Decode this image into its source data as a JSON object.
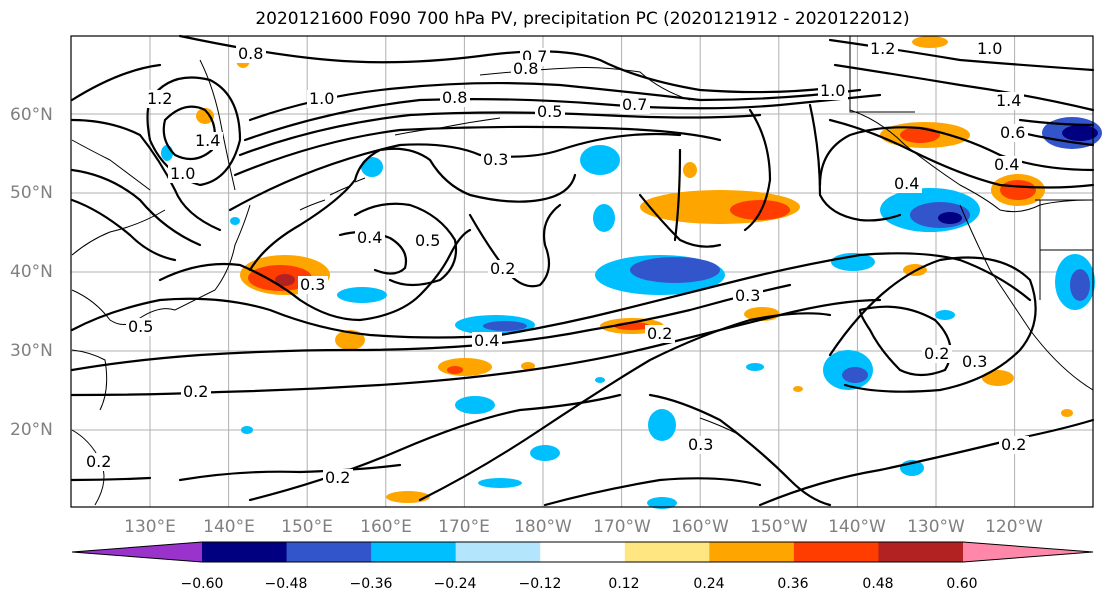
{
  "title": "2020121600 F090 700 hPa PV, precipitation PC (2020121912 - 2020122012)",
  "map": {
    "lat_labels": [
      "60°N",
      "50°N",
      "40°N",
      "30°N",
      "20°N"
    ],
    "lon_labels": [
      "130°E",
      "140°E",
      "150°E",
      "160°E",
      "170°E",
      "180°W",
      "170°W",
      "160°W",
      "150°W",
      "140°W",
      "130°W",
      "120°W"
    ],
    "contour_labels": [
      "0.8",
      "0.7",
      "0.8",
      "1.2",
      "1.0",
      "1.2",
      "1.0",
      "0.8",
      "0.5",
      "0.7",
      "1.0",
      "1.4",
      "0.6",
      "0.4",
      "0.4",
      "0.3",
      "0.4",
      "0.5",
      "0.2",
      "0.3",
      "0.3",
      "0.5",
      "0.4",
      "0.2",
      "0.2",
      "0.3",
      "0.2",
      "0.2",
      "0.3",
      "0.2",
      "1.0",
      "1.4",
      "0.2"
    ]
  },
  "colorbar": {
    "colors": [
      "#9933cc",
      "#000080",
      "#3355cc",
      "#00bfff",
      "#b3e5fc",
      "#ffffff",
      "#ffe680",
      "#ffa500",
      "#ff3d00",
      "#b22222",
      "#ff88aa"
    ],
    "tick_labels": [
      "−0.60",
      "−0.48",
      "−0.36",
      "−0.24",
      "−0.12",
      "0.12",
      "0.24",
      "0.36",
      "0.48",
      "0.60"
    ]
  }
}
